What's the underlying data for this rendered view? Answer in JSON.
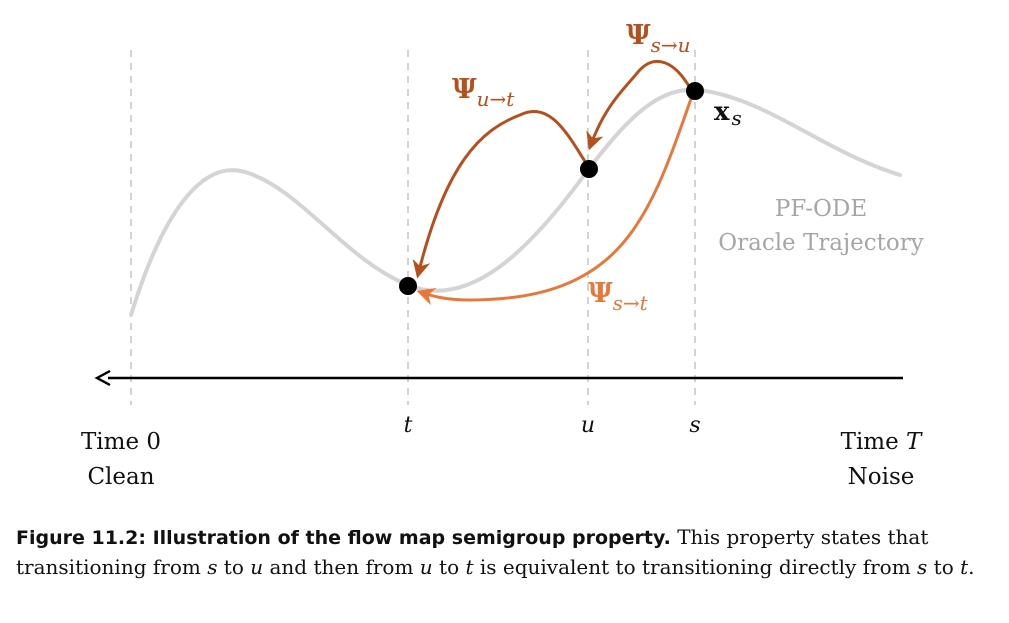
{
  "figure": {
    "axis": {
      "left_label_line1": "Time 0",
      "left_label_line2": "Clean",
      "right_label_prefix": "Time ",
      "right_label_symbol": "T",
      "right_label_line2": "Noise",
      "ticks": [
        "t",
        "u",
        "s"
      ]
    },
    "trajectory_label": {
      "line1": "PF-ODE",
      "line2": "Oracle Trajectory"
    },
    "point_label": {
      "symbol": "x",
      "subscript": "s"
    },
    "maps": {
      "psi_symbol": "Ψ",
      "s_to_u": "s→u",
      "u_to_t": "u→t",
      "s_to_t": "s→t"
    },
    "colors": {
      "trajectory": "#d4d4d4",
      "dashed_guides": "#c8c8c8",
      "dark_arrow": "#b5501c",
      "light_arrow": "#e8773a",
      "axis": "#000000",
      "points": "#000000"
    }
  },
  "caption": {
    "lead": "Figure 11.2: Illustration of the flow map semigroup property.",
    "part1": " This property states that transitioning from ",
    "s1": "s",
    "part2": " to ",
    "u1": "u",
    "part3": " and then from ",
    "u2": "u",
    "part4": " to ",
    "t1": "t",
    "part5": " is equivalent to transitioning directly from ",
    "s2": "s",
    "part6": " to ",
    "t2": "t",
    "part7": "."
  }
}
